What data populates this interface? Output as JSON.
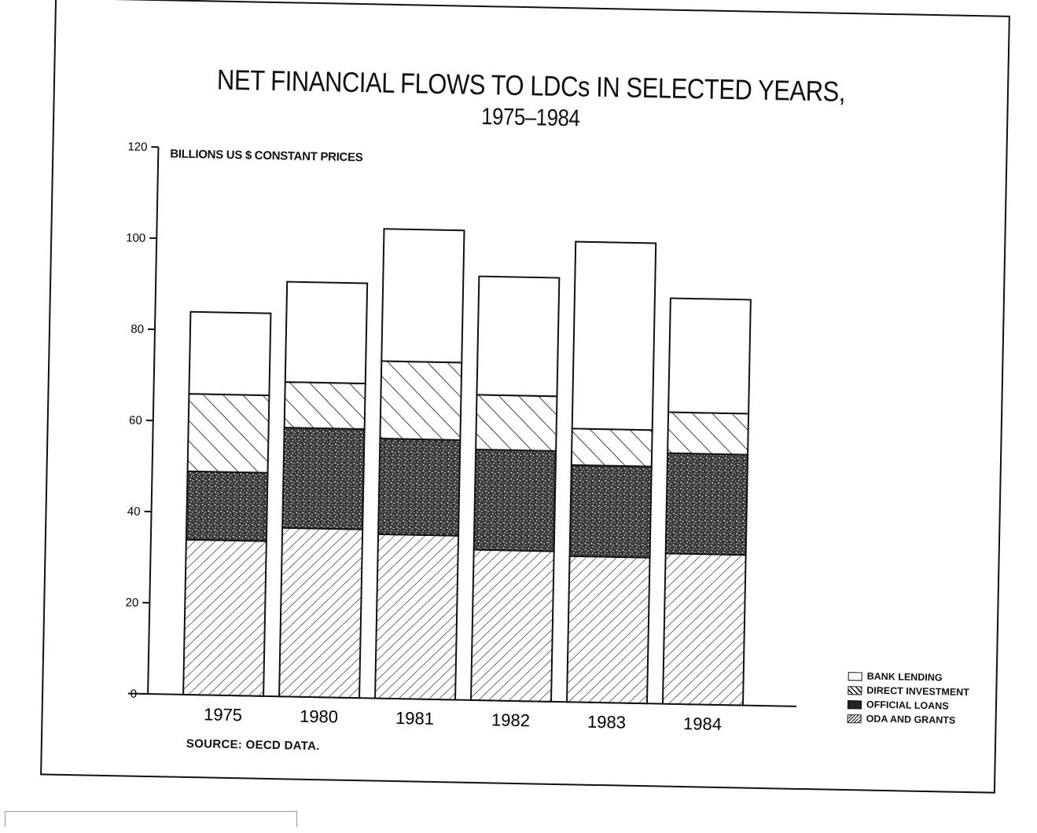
{
  "chart_data": {
    "type": "bar",
    "stacked": true,
    "title": "NET FINANCIAL FLOWS TO LDCs IN SELECTED YEARS,",
    "subtitle": "1975–1984",
    "ylabel": "BILLIONS US $ CONSTANT PRICES",
    "xlabel": "",
    "ylim": [
      0,
      120
    ],
    "yticks": [
      0,
      20,
      40,
      60,
      80,
      100,
      120
    ],
    "categories": [
      "1975",
      "1980",
      "1981",
      "1982",
      "1983",
      "1984"
    ],
    "series": [
      {
        "name": "ODA AND GRANTS",
        "values": [
          34,
          37,
          36,
          33,
          32,
          33
        ],
        "pattern": "hatch-forward"
      },
      {
        "name": "OFFICIAL LOANS",
        "values": [
          15,
          22,
          21,
          22,
          20,
          22
        ],
        "pattern": "stipple"
      },
      {
        "name": "DIRECT INVESTMENT",
        "values": [
          17,
          10,
          17,
          12,
          8,
          9
        ],
        "pattern": "hatch-back"
      },
      {
        "name": "BANK LENDING",
        "values": [
          18,
          22,
          29,
          26,
          41,
          25
        ],
        "pattern": "empty"
      }
    ],
    "legend_order": [
      "BANK LENDING",
      "DIRECT INVESTMENT",
      "OFFICIAL LOANS",
      "ODA AND GRANTS"
    ],
    "legend_position": "bottom-right",
    "grid": false,
    "source": "SOURCE:  OECD DATA."
  }
}
